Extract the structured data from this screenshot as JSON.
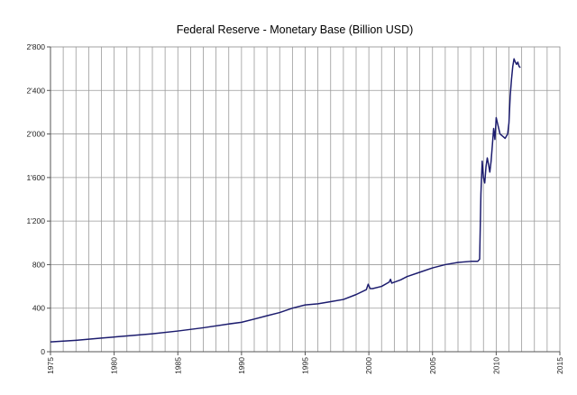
{
  "chart_data": {
    "type": "line",
    "title": "Federal Reserve - Monetary Base (Billion USD)",
    "xlabel": "",
    "ylabel": "",
    "xlim": [
      1975,
      2015
    ],
    "ylim": [
      0,
      2800
    ],
    "x_ticks": [
      "1975",
      "1980",
      "1985",
      "1990",
      "1995",
      "2000",
      "2005",
      "2010",
      "2015"
    ],
    "y_ticks": [
      "0",
      "400",
      "800",
      "1'200",
      "1'600",
      "2'000",
      "2'400",
      "2'800"
    ],
    "x_tick_values": [
      1975,
      1980,
      1985,
      1990,
      1995,
      2000,
      2005,
      2010,
      2015
    ],
    "y_tick_values": [
      0,
      400,
      800,
      1200,
      1600,
      2000,
      2400,
      2800
    ],
    "grid": {
      "x_major": true,
      "x_minor_every": 1,
      "y_major": true
    },
    "legend": "none",
    "series_color": "#1c1c6e",
    "series": [
      {
        "x": [
          1975.0,
          1977.0,
          1979.0,
          1981.0,
          1983.0,
          1985.0,
          1987.0,
          1989.0,
          1990.0,
          1991.0,
          1992.0,
          1993.0,
          1994.0,
          1995.0,
          1996.0,
          1997.0,
          1998.0,
          1999.0,
          1999.8,
          1999.95,
          2000.1,
          2000.3,
          2001.0,
          2001.6,
          2001.7,
          2001.8,
          2002.5,
          2003.0,
          2004.0,
          2005.0,
          2006.0,
          2007.0,
          2008.0,
          2008.55,
          2008.7,
          2008.8,
          2008.9,
          2009.0,
          2009.1,
          2009.2,
          2009.3,
          2009.4,
          2009.5,
          2009.6,
          2009.7,
          2009.8,
          2009.9,
          2010.0,
          2010.1,
          2010.2,
          2010.3,
          2010.5,
          2010.7,
          2010.9,
          2011.0,
          2011.1,
          2011.2,
          2011.3,
          2011.4,
          2011.5,
          2011.6,
          2011.7,
          2011.8,
          2011.9
        ],
        "values": [
          90,
          105,
          125,
          145,
          165,
          190,
          220,
          255,
          270,
          300,
          330,
          360,
          400,
          430,
          440,
          460,
          480,
          525,
          570,
          620,
          580,
          580,
          600,
          640,
          665,
          630,
          660,
          690,
          730,
          770,
          800,
          820,
          830,
          830,
          850,
          1450,
          1750,
          1600,
          1550,
          1700,
          1780,
          1720,
          1650,
          1750,
          1900,
          2050,
          1950,
          2150,
          2100,
          2050,
          2000,
          1980,
          1960,
          2000,
          2100,
          2350,
          2500,
          2620,
          2690,
          2660,
          2640,
          2660,
          2620,
          2610
        ]
      }
    ]
  }
}
